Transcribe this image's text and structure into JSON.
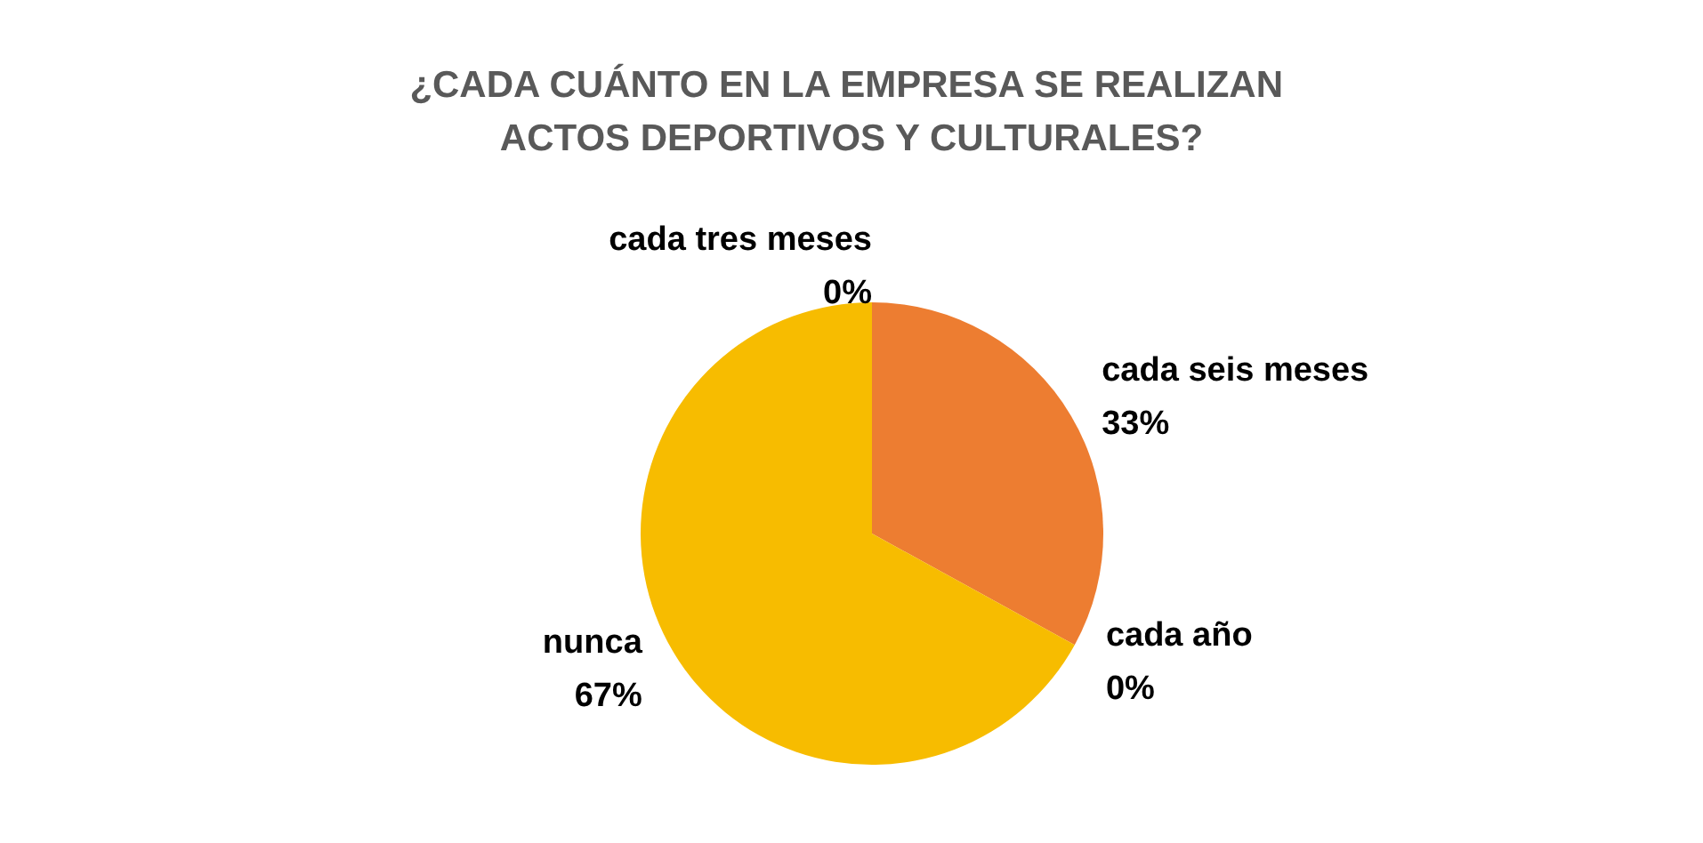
{
  "chart_data": {
    "type": "pie",
    "title": "¿CADA CUÁNTO EN LA EMPRESA SE REALIZAN ACTOS DEPORTIVOS Y CULTURALES?",
    "categories": [
      "cada tres meses",
      "cada seis meses",
      "cada año",
      "nunca"
    ],
    "values": [
      0,
      33,
      0,
      67
    ],
    "colors": [
      "#4472c4",
      "#ed7d31",
      "#a5a5a5",
      "#f7bc00"
    ],
    "value_labels": [
      "0%",
      "33%",
      "0%",
      "67%"
    ],
    "legend": false
  }
}
